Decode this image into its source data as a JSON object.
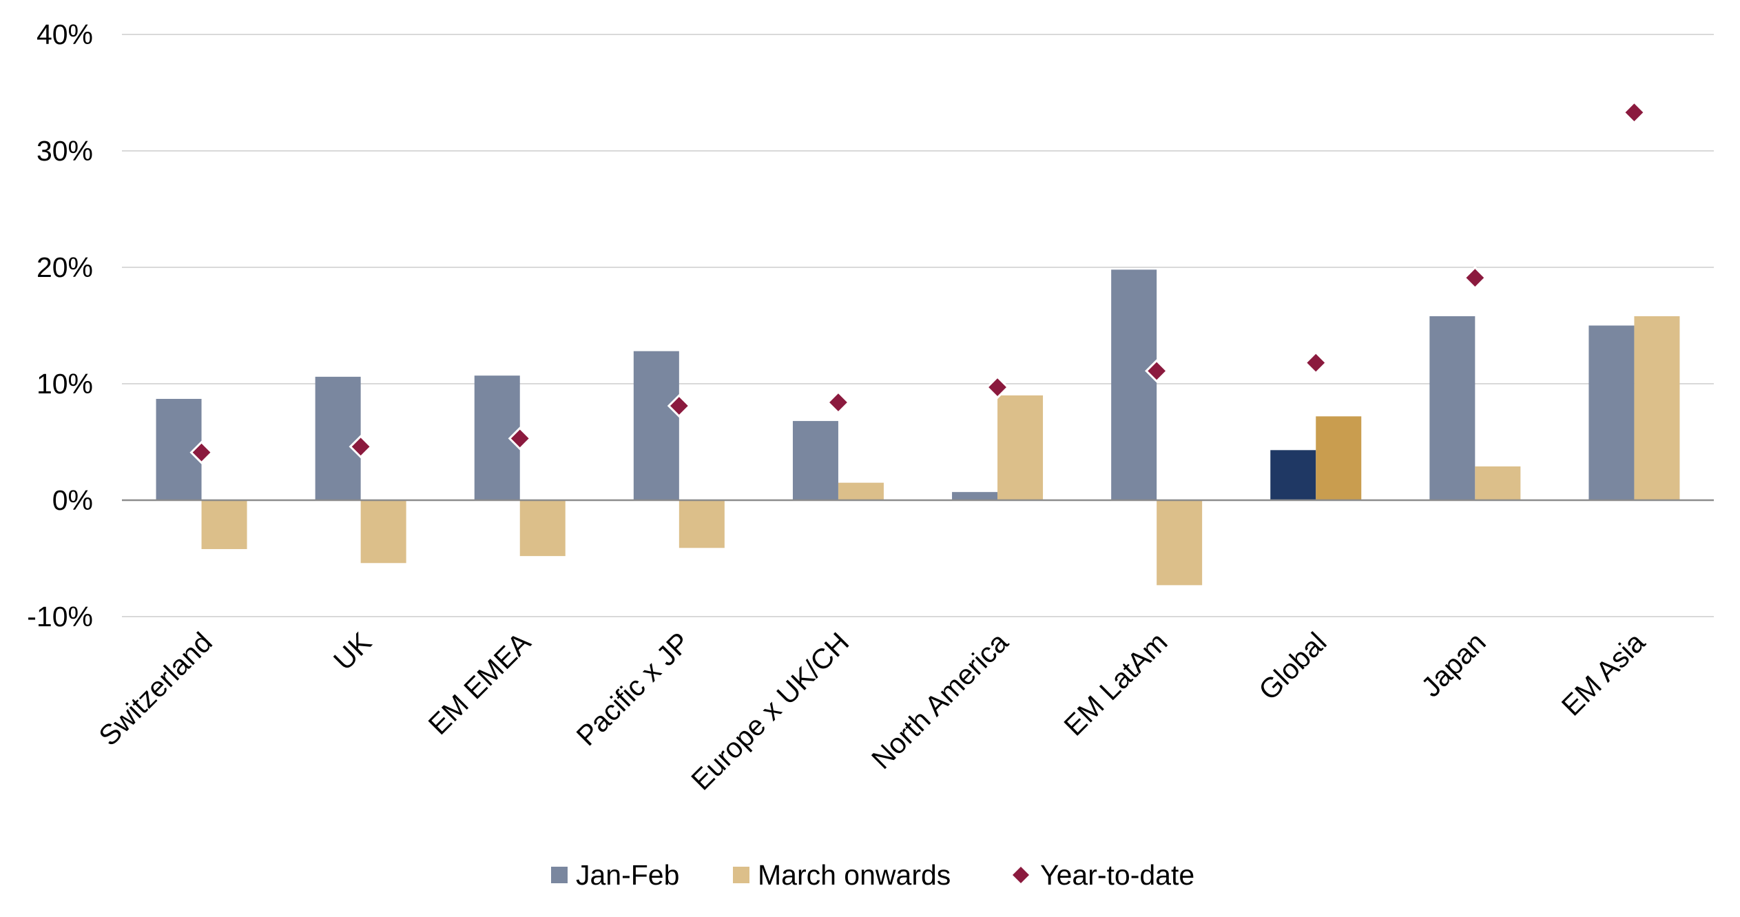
{
  "chart_data": {
    "type": "bar",
    "title": "",
    "xlabel": "",
    "ylabel": "",
    "ylim": [
      -10,
      40
    ],
    "yticks": [
      -10,
      0,
      10,
      20,
      30,
      40
    ],
    "ytick_labels": [
      "-10%",
      "0%",
      "10%",
      "20%",
      "30%",
      "40%"
    ],
    "grid": true,
    "legend_position": "bottom",
    "categories": [
      "Switzerland",
      "UK",
      "EM EMEA",
      "Pacific x JP",
      "Europe x UK/CH",
      "North America",
      "EM LatAm",
      "Global",
      "Japan",
      "EM Asia"
    ],
    "highlight_category": "Global",
    "series": [
      {
        "name": "Jan-Feb",
        "kind": "bar",
        "color": "#7a879f",
        "highlight_color": "#1f3864",
        "values": [
          8.7,
          10.6,
          10.7,
          12.8,
          6.8,
          0.7,
          19.8,
          4.3,
          15.8,
          15.0
        ]
      },
      {
        "name": "March onwards",
        "kind": "bar",
        "color": "#dcbf8a",
        "highlight_color": "#c99d4f",
        "values": [
          -4.2,
          -5.4,
          -4.8,
          -4.1,
          1.5,
          9.0,
          -7.3,
          7.2,
          2.9,
          15.8
        ]
      },
      {
        "name": "Year-to-date",
        "kind": "marker",
        "color": "#8b1a3e",
        "values": [
          4.1,
          4.6,
          5.3,
          8.1,
          8.4,
          9.7,
          11.1,
          11.8,
          19.1,
          33.3
        ]
      }
    ]
  }
}
